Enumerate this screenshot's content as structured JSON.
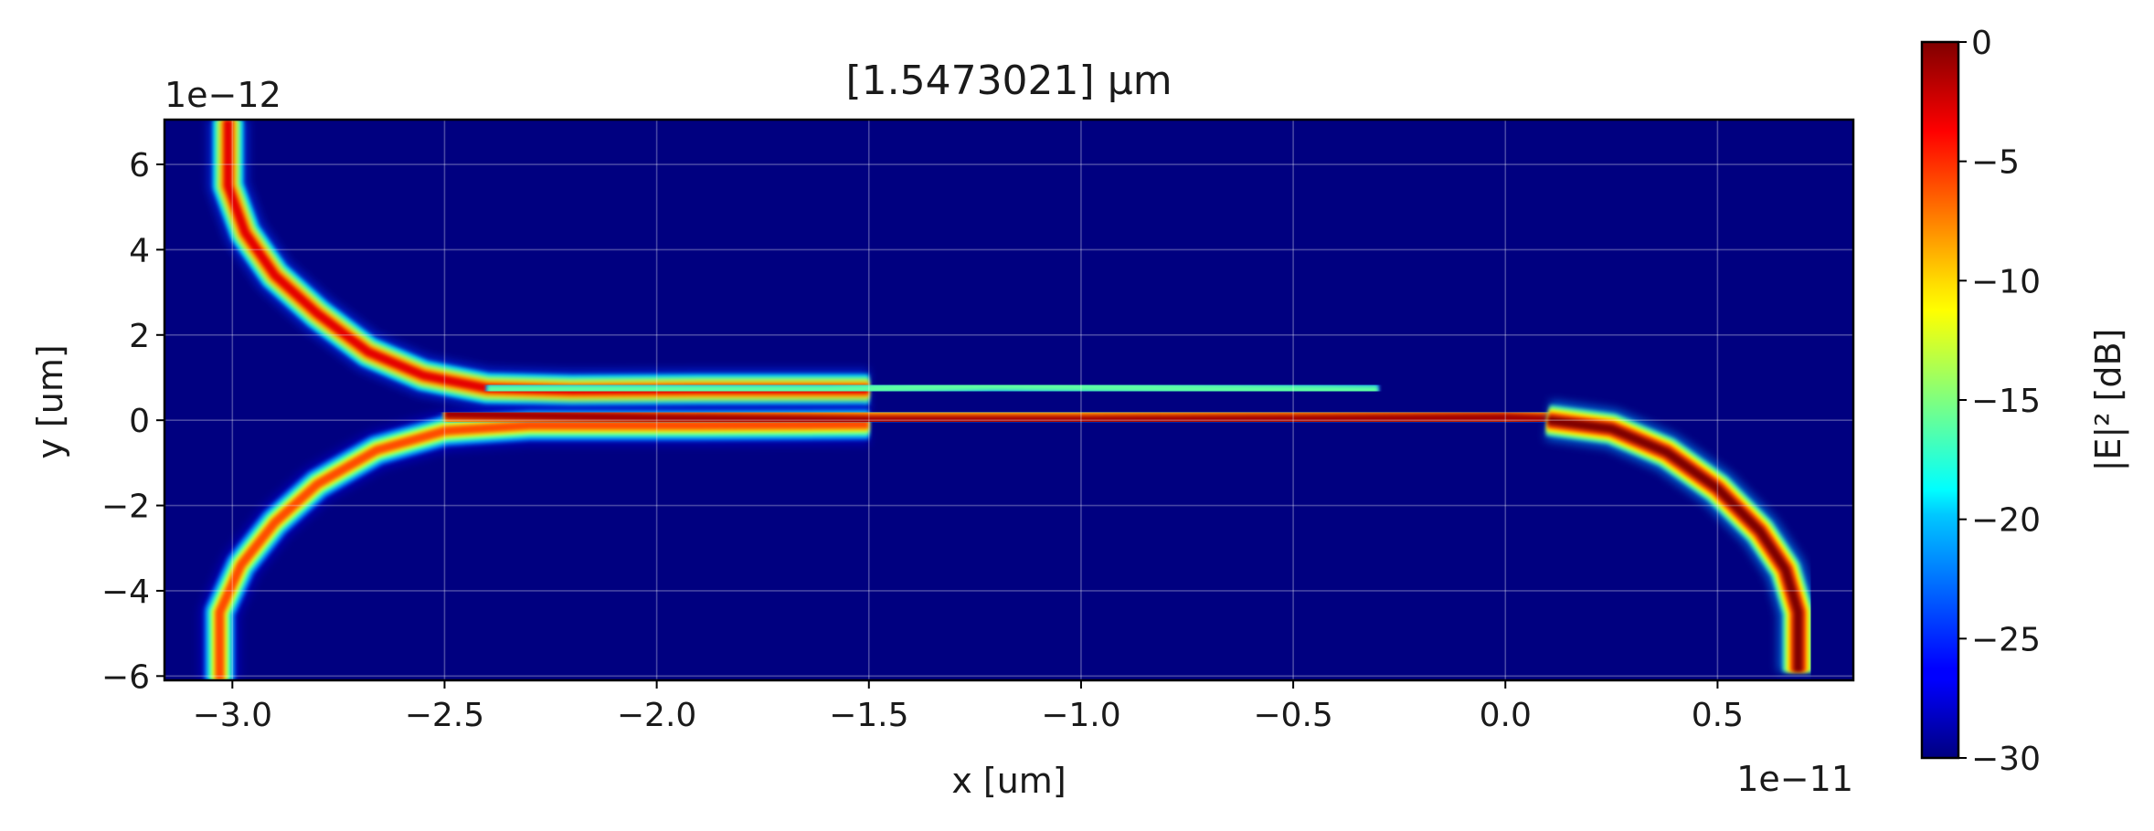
{
  "chart_data": {
    "type": "heatmap",
    "title": "[1.5473021] μm",
    "xlabel": "x [um]",
    "ylabel": "y [um]",
    "x_offset_label": "1e−11",
    "y_offset_label": "1e−12",
    "xlim": [
      -3.16,
      0.82
    ],
    "ylim": [
      -6.1,
      7.05
    ],
    "x_ticks": [
      {
        "value": -3.0,
        "label": "−3.0"
      },
      {
        "value": -2.5,
        "label": "−2.5"
      },
      {
        "value": -2.0,
        "label": "−2.0"
      },
      {
        "value": -1.5,
        "label": "−1.5"
      },
      {
        "value": -1.0,
        "label": "−1.0"
      },
      {
        "value": -0.5,
        "label": "−0.5"
      },
      {
        "value": 0.0,
        "label": "0.0"
      },
      {
        "value": 0.5,
        "label": "0.5"
      }
    ],
    "y_ticks": [
      {
        "value": 6,
        "label": "6"
      },
      {
        "value": 4,
        "label": "4"
      },
      {
        "value": 2,
        "label": "2"
      },
      {
        "value": 0,
        "label": "0"
      },
      {
        "value": -2,
        "label": "−2"
      },
      {
        "value": -4,
        "label": "−4"
      },
      {
        "value": -6,
        "label": "−6"
      }
    ],
    "grid": true,
    "colormap": "jet",
    "background_color": "#000080",
    "colorbar": {
      "label": "|E|² [dB]",
      "min": -30,
      "max": 0,
      "ticks": [
        {
          "value": 0,
          "label": "0"
        },
        {
          "value": -5,
          "label": "−5"
        },
        {
          "value": -10,
          "label": "−10"
        },
        {
          "value": -15,
          "label": "−15"
        },
        {
          "value": -20,
          "label": "−20"
        },
        {
          "value": -25,
          "label": "−25"
        },
        {
          "value": -30,
          "label": "−30"
        }
      ]
    },
    "field_paths": [
      {
        "name": "upper-left-arm",
        "points": [
          [
            -3.01,
            7.05
          ],
          [
            -3.01,
            5.5
          ],
          [
            -2.97,
            4.4
          ],
          [
            -2.9,
            3.4
          ],
          [
            -2.8,
            2.5
          ],
          [
            -2.68,
            1.6
          ],
          [
            -2.55,
            1.05
          ],
          [
            -2.4,
            0.75
          ],
          [
            -2.2,
            0.7
          ],
          [
            -1.9,
            0.72
          ],
          [
            -1.5,
            0.72
          ]
        ],
        "intensity_db": -3
      },
      {
        "name": "upper-coupled-fade",
        "points": [
          [
            -2.4,
            0.72
          ],
          [
            -2.0,
            0.72
          ],
          [
            -1.6,
            0.72
          ],
          [
            -1.2,
            0.8
          ],
          [
            -0.8,
            0.75
          ],
          [
            -0.3,
            0.7
          ]
        ],
        "intensity_db": -16
      },
      {
        "name": "lower-left-arm",
        "points": [
          [
            -3.03,
            -6.1
          ],
          [
            -3.03,
            -4.5
          ],
          [
            -2.98,
            -3.4
          ],
          [
            -2.9,
            -2.4
          ],
          [
            -2.8,
            -1.5
          ],
          [
            -2.66,
            -0.7
          ],
          [
            -2.5,
            -0.25
          ],
          [
            -2.3,
            -0.12
          ],
          [
            -1.9,
            -0.12
          ],
          [
            -1.5,
            -0.1
          ]
        ],
        "intensity_db": -6
      },
      {
        "name": "lower-bus-center",
        "points": [
          [
            -2.5,
            0.15
          ],
          [
            -2.0,
            0.05
          ],
          [
            -1.5,
            0.0
          ],
          [
            -1.0,
            0.0
          ],
          [
            -0.5,
            0.02
          ],
          [
            0.0,
            0.05
          ],
          [
            0.15,
            0.0
          ]
        ],
        "intensity_db": -1
      },
      {
        "name": "right-bend",
        "points": [
          [
            0.1,
            0.0
          ],
          [
            0.25,
            -0.2
          ],
          [
            0.38,
            -0.75
          ],
          [
            0.5,
            -1.6
          ],
          [
            0.6,
            -2.6
          ],
          [
            0.66,
            -3.5
          ],
          [
            0.69,
            -4.5
          ],
          [
            0.69,
            -5.9
          ]
        ],
        "intensity_db": 0
      }
    ]
  }
}
